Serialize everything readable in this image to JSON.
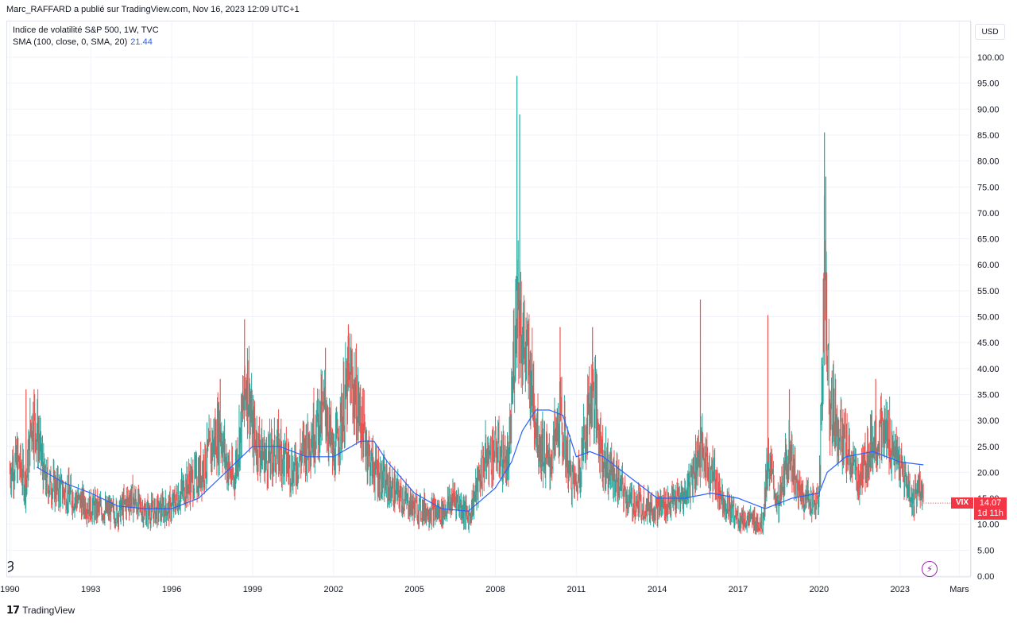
{
  "header": {
    "published": "Marc_RAFFARD a publié sur TradingView.com, Nov 16, 2023 12:09 UTC+1"
  },
  "legend": {
    "title": "Indice de volatilité S&P 500, 1W, TVC",
    "sma_label": "SMA (100, close, 0, SMA, 20)",
    "sma_value": "21.44"
  },
  "axis": {
    "currency": "USD"
  },
  "current": {
    "symbol": "VIX",
    "price": "14.07",
    "countdown": "1d 11h"
  },
  "footer": {
    "brand": "TradingView",
    "logo_glyph": "𝟭𝟳"
  },
  "icons": {
    "bolt": "⚡",
    "handle": "Ȝ"
  },
  "colors": {
    "up": "#26a69a",
    "down": "#ef5350",
    "sma": "#2962ff",
    "grid": "#f0f3fa",
    "tag": "#f23645"
  },
  "chart_data": {
    "type": "line",
    "title": "Indice de volatilité S&P 500, 1W, TVC",
    "xlabel": "",
    "ylabel": "",
    "ylim": [
      0,
      100
    ],
    "y_ticks": [
      "0.00",
      "5.00",
      "10.00",
      "15.00",
      "20.00",
      "25.00",
      "30.00",
      "35.00",
      "40.00",
      "45.00",
      "50.00",
      "55.00",
      "60.00",
      "65.00",
      "70.00",
      "75.00",
      "80.00",
      "85.00",
      "90.00",
      "95.00",
      "100.00"
    ],
    "x_ticks": [
      {
        "label": "1990",
        "t": 1990.0
      },
      {
        "label": "1993",
        "t": 1993.0
      },
      {
        "label": "1996",
        "t": 1996.0
      },
      {
        "label": "1999",
        "t": 1999.0
      },
      {
        "label": "2002",
        "t": 2002.0
      },
      {
        "label": "2005",
        "t": 2005.0
      },
      {
        "label": "2008",
        "t": 2008.0
      },
      {
        "label": "2011",
        "t": 2011.0
      },
      {
        "label": "2014",
        "t": 2014.0
      },
      {
        "label": "2017",
        "t": 2017.0
      },
      {
        "label": "2020",
        "t": 2020.0
      },
      {
        "label": "2023",
        "t": 2023.0
      },
      {
        "label": "Mars",
        "t": 2025.2
      }
    ],
    "xlim": [
      1989.9,
      2025.6
    ],
    "grid": true,
    "series": [
      {
        "name": "VIX",
        "kind": "candles",
        "anchors": [
          [
            1990.0,
            20
          ],
          [
            1990.3,
            22
          ],
          [
            1990.6,
            17
          ],
          [
            1990.8,
            30
          ],
          [
            1991.0,
            28
          ],
          [
            1991.3,
            18
          ],
          [
            1992.0,
            16
          ],
          [
            1993.0,
            13
          ],
          [
            1994.0,
            12
          ],
          [
            1994.5,
            15
          ],
          [
            1995.0,
            12
          ],
          [
            1996.0,
            13
          ],
          [
            1996.5,
            17
          ],
          [
            1997.0,
            19
          ],
          [
            1997.8,
            28
          ],
          [
            1998.0,
            22
          ],
          [
            1998.3,
            18
          ],
          [
            1998.8,
            38
          ],
          [
            1999.0,
            27
          ],
          [
            1999.5,
            22
          ],
          [
            2000.0,
            24
          ],
          [
            2000.5,
            20
          ],
          [
            2001.0,
            25
          ],
          [
            2001.7,
            32
          ],
          [
            2002.0,
            22
          ],
          [
            2002.6,
            38
          ],
          [
            2003.0,
            30
          ],
          [
            2003.4,
            21
          ],
          [
            2004.0,
            17
          ],
          [
            2005.0,
            13
          ],
          [
            2006.0,
            12
          ],
          [
            2006.5,
            15
          ],
          [
            2007.0,
            11
          ],
          [
            2007.6,
            22
          ],
          [
            2008.0,
            24
          ],
          [
            2008.5,
            21
          ],
          [
            2008.8,
            55
          ],
          [
            2009.0,
            45
          ],
          [
            2009.3,
            38
          ],
          [
            2009.6,
            26
          ],
          [
            2010.0,
            21
          ],
          [
            2010.4,
            30
          ],
          [
            2010.8,
            19
          ],
          [
            2011.0,
            17
          ],
          [
            2011.6,
            36
          ],
          [
            2012.0,
            22
          ],
          [
            2012.5,
            18
          ],
          [
            2013.0,
            14
          ],
          [
            2014.0,
            13
          ],
          [
            2015.0,
            15
          ],
          [
            2015.6,
            24
          ],
          [
            2016.0,
            20
          ],
          [
            2016.5,
            14
          ],
          [
            2017.0,
            11
          ],
          [
            2017.9,
            10
          ],
          [
            2018.1,
            22
          ],
          [
            2018.5,
            13
          ],
          [
            2018.9,
            25
          ],
          [
            2019.2,
            16
          ],
          [
            2019.8,
            14
          ],
          [
            2020.0,
            14
          ],
          [
            2020.2,
            57
          ],
          [
            2020.4,
            33
          ],
          [
            2021.0,
            24
          ],
          [
            2021.5,
            18
          ],
          [
            2022.0,
            26
          ],
          [
            2022.5,
            27
          ],
          [
            2023.0,
            21
          ],
          [
            2023.5,
            14
          ],
          [
            2023.7,
            18
          ],
          [
            2023.87,
            14.07
          ]
        ],
        "spikes": [
          [
            1990.6,
            36
          ],
          [
            1990.9,
            36
          ],
          [
            1997.8,
            38
          ],
          [
            1998.7,
            49.5
          ],
          [
            2001.7,
            44
          ],
          [
            2002.55,
            48.5
          ],
          [
            2008.8,
            96.4
          ],
          [
            2008.9,
            89
          ],
          [
            2010.4,
            48
          ],
          [
            2011.6,
            48
          ],
          [
            2015.6,
            53.3
          ],
          [
            2018.1,
            50.3
          ],
          [
            2018.9,
            36
          ],
          [
            2020.2,
            85.5
          ],
          [
            2020.25,
            77
          ],
          [
            2022.1,
            38
          ]
        ]
      },
      {
        "name": "SMA",
        "kind": "line",
        "values": [
          [
            1991.0,
            21
          ],
          [
            1992.0,
            18
          ],
          [
            1993.0,
            16
          ],
          [
            1994.0,
            13.5
          ],
          [
            1995.0,
            13
          ],
          [
            1996.0,
            13
          ],
          [
            1997.0,
            15
          ],
          [
            1998.0,
            20
          ],
          [
            1999.0,
            25
          ],
          [
            2000.0,
            25
          ],
          [
            2001.0,
            23
          ],
          [
            2002.0,
            23
          ],
          [
            2003.0,
            26
          ],
          [
            2003.5,
            26
          ],
          [
            2004.0,
            22
          ],
          [
            2005.0,
            16
          ],
          [
            2006.0,
            13
          ],
          [
            2007.0,
            12.5
          ],
          [
            2008.0,
            17
          ],
          [
            2008.6,
            22
          ],
          [
            2009.0,
            28
          ],
          [
            2009.5,
            32
          ],
          [
            2010.0,
            32
          ],
          [
            2010.5,
            31
          ],
          [
            2011.0,
            23
          ],
          [
            2011.5,
            24
          ],
          [
            2012.0,
            23
          ],
          [
            2013.0,
            19
          ],
          [
            2014.0,
            15
          ],
          [
            2015.0,
            15
          ],
          [
            2016.0,
            16
          ],
          [
            2017.0,
            15
          ],
          [
            2018.0,
            13
          ],
          [
            2019.0,
            15
          ],
          [
            2020.0,
            16
          ],
          [
            2020.3,
            20
          ],
          [
            2021.0,
            23
          ],
          [
            2022.0,
            24
          ],
          [
            2022.5,
            23
          ],
          [
            2023.0,
            22
          ],
          [
            2023.87,
            21.44
          ]
        ]
      }
    ]
  }
}
